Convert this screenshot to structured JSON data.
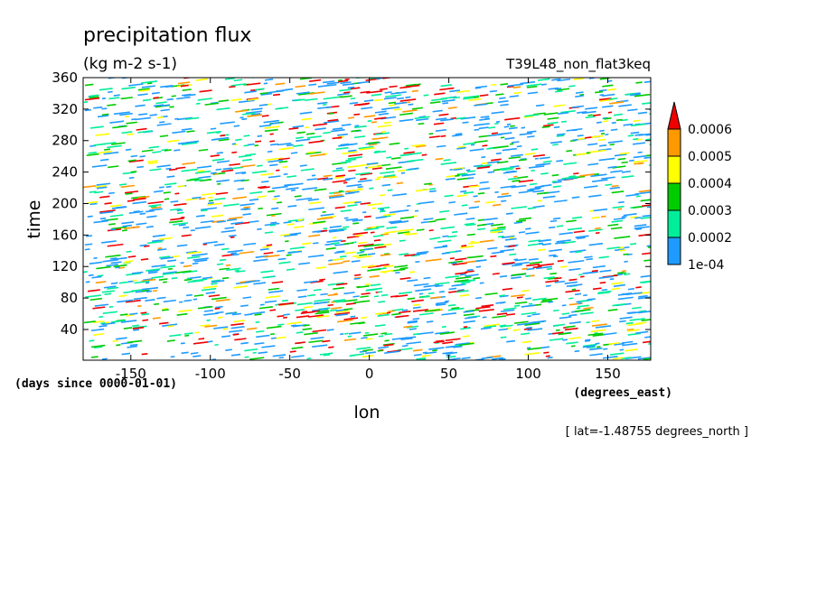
{
  "chart_data": {
    "type": "heatmap",
    "title": "precipitation flux",
    "units": "(kg m-2 s-1)",
    "experiment": "T39L48_non_flat3keq",
    "xlabel": "lon",
    "x_units": "(degrees_east)",
    "ylabel": "time",
    "y_units": "(days since 0000-01-01)",
    "footer": "[ lat=-1.48755 degrees_north ]",
    "xlim": [
      -180,
      177
    ],
    "ylim": [
      1,
      360
    ],
    "x_ticks": [
      -150,
      -100,
      -50,
      0,
      50,
      100,
      150
    ],
    "y_ticks": [
      40,
      80,
      120,
      160,
      200,
      240,
      280,
      320,
      360
    ],
    "colorbar": {
      "levels": [
        "1e-04",
        "0.0002",
        "0.0003",
        "0.0004",
        "0.0005",
        "0.0006"
      ],
      "colors": [
        "#1e9bff",
        "#00ee9a",
        "#00cc00",
        "#ffff00",
        "#ff9900",
        "#ee0000"
      ]
    },
    "field_description": "Noisy fine-scale precipitation streaks; enhanced near lon 0 (-30 to 20)"
  }
}
